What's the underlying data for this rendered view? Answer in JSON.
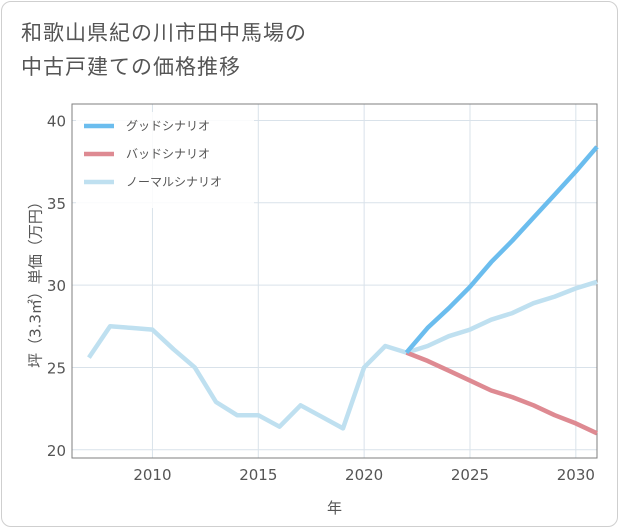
{
  "title_lines": [
    "和歌山県紀の川市田中馬場の",
    "中古戸建ての価格推移"
  ],
  "chart_data": {
    "type": "line",
    "xlabel": "年",
    "ylabel": "坪（3.3㎡）単価（万円）",
    "xlim": [
      2006.2,
      2031
    ],
    "ylim": [
      19.5,
      41
    ],
    "x_ticks": [
      2010,
      2015,
      2020,
      2025,
      2030
    ],
    "y_ticks": [
      20,
      25,
      30,
      35,
      40
    ],
    "grid": true,
    "legend_position": "top-left",
    "series": [
      {
        "name": "グッドシナリオ",
        "color": "#6bbdee",
        "points": [
          [
            2022,
            25.9
          ],
          [
            2023,
            27.4
          ],
          [
            2024,
            28.6
          ],
          [
            2025,
            29.9
          ],
          [
            2026,
            31.4
          ],
          [
            2027,
            32.7
          ],
          [
            2028,
            34.1
          ],
          [
            2029,
            35.5
          ],
          [
            2030,
            36.9
          ],
          [
            2031,
            38.4
          ]
        ]
      },
      {
        "name": "バッドシナリオ",
        "color": "#de8a92",
        "points": [
          [
            2022,
            25.9
          ],
          [
            2023,
            25.4
          ],
          [
            2024,
            24.8
          ],
          [
            2025,
            24.2
          ],
          [
            2026,
            23.6
          ],
          [
            2027,
            23.2
          ],
          [
            2028,
            22.7
          ],
          [
            2029,
            22.1
          ],
          [
            2030,
            21.6
          ],
          [
            2031,
            21.0
          ]
        ]
      },
      {
        "name": "ノーマルシナリオ",
        "color": "#bfe0f0",
        "points": [
          [
            2007,
            25.6
          ],
          [
            2008,
            27.5
          ],
          [
            2009,
            27.4
          ],
          [
            2010,
            27.3
          ],
          [
            2011,
            26.1
          ],
          [
            2012,
            25.0
          ],
          [
            2013,
            22.9
          ],
          [
            2014,
            22.1
          ],
          [
            2015,
            22.1
          ],
          [
            2016,
            21.4
          ],
          [
            2017,
            22.7
          ],
          [
            2018,
            22.0
          ],
          [
            2019,
            21.3
          ],
          [
            2020,
            25.0
          ],
          [
            2021,
            26.3
          ],
          [
            2022,
            25.9
          ],
          [
            2023,
            26.3
          ],
          [
            2024,
            26.9
          ],
          [
            2025,
            27.3
          ],
          [
            2026,
            27.9
          ],
          [
            2027,
            28.3
          ],
          [
            2028,
            28.9
          ],
          [
            2029,
            29.3
          ],
          [
            2030,
            29.8
          ],
          [
            2031,
            30.2
          ]
        ]
      }
    ]
  }
}
